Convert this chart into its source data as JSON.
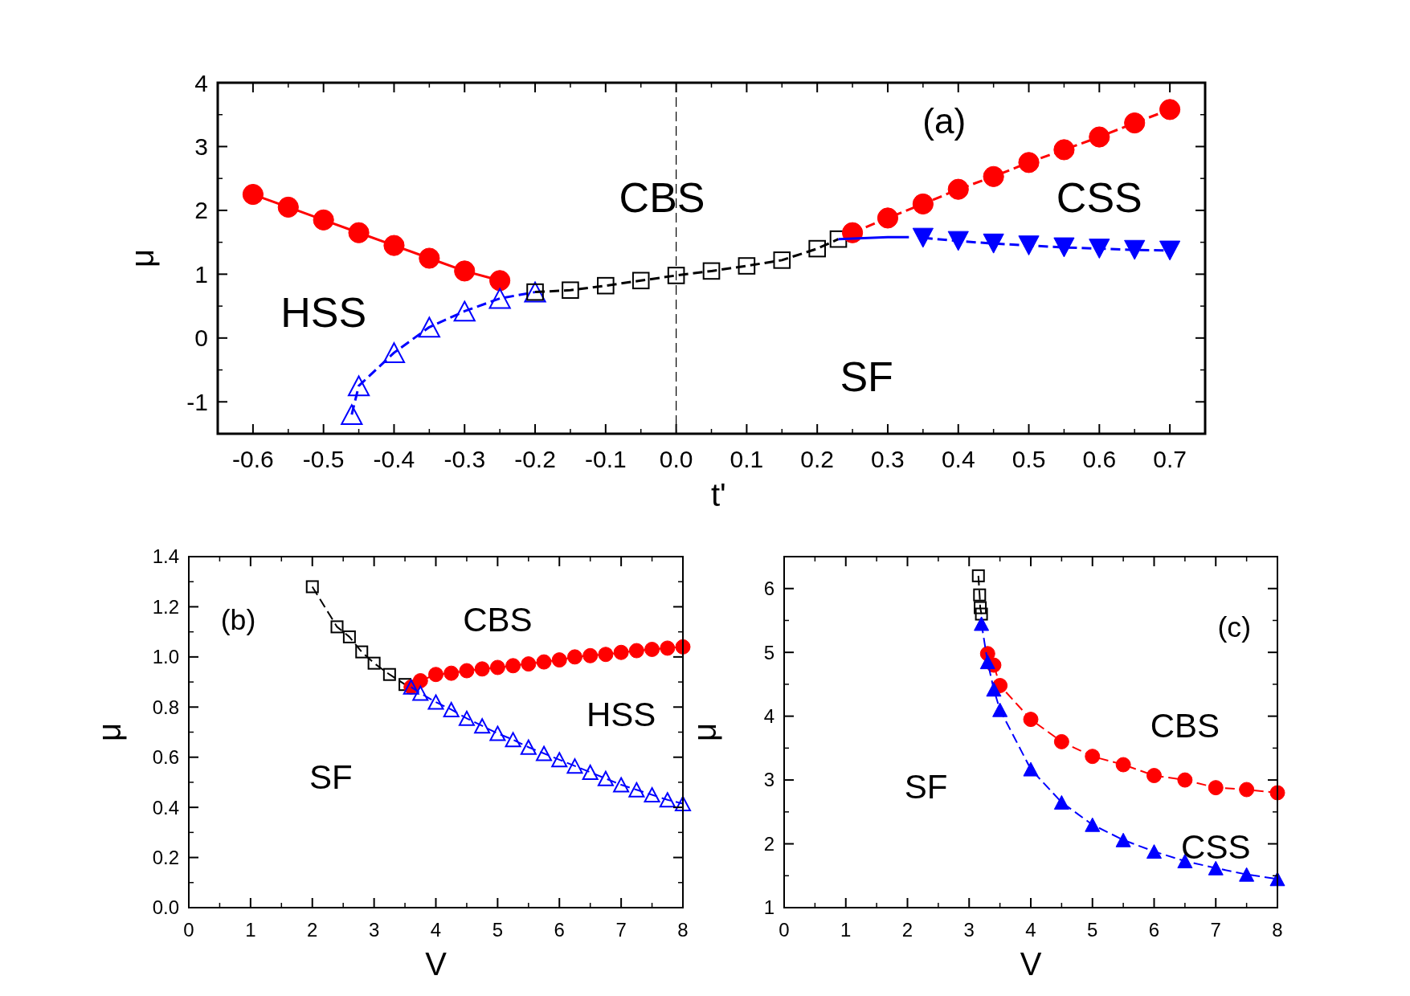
{
  "chart_data": [
    {
      "type": "line",
      "xlabel": "t'",
      "ylabel": "μ",
      "xlim": [
        -0.65,
        0.75
      ],
      "ylim": [
        -1.5,
        4
      ],
      "xticks": [
        -0.6,
        -0.5,
        -0.4,
        -0.3,
        -0.2,
        -0.1,
        {
          "value": 0,
          "label": "0.0"
        },
        0.1,
        0.2,
        0.3,
        0.4,
        0.5,
        0.6,
        0.7
      ],
      "yticks": [
        -1,
        0,
        1,
        2,
        3,
        4
      ],
      "ref_lines": [
        {
          "axis": "x",
          "value": 0,
          "label": null,
          "color": "#000000",
          "line_style": "dashed"
        }
      ],
      "annotations": [
        "(a)",
        "CBS",
        "CSS",
        "HSS",
        "SF"
      ],
      "series": [
        {
          "color": "#ff0000",
          "marker": "circle",
          "line_style": "solid",
          "x": [
            -0.6,
            -0.55,
            -0.5,
            -0.45,
            -0.4,
            -0.35,
            -0.3,
            -0.25
          ],
          "values": [
            2.25,
            2.05,
            1.85,
            1.65,
            1.45,
            1.25,
            1.05,
            0.9
          ]
        },
        {
          "color": "#0000ff",
          "marker": "triangle",
          "line_style": "dashed",
          "x": [
            -0.46,
            -0.45,
            -0.4,
            -0.35,
            -0.3,
            -0.25,
            -0.2
          ],
          "values": [
            -1.2,
            -0.75,
            -0.23,
            0.17,
            0.42,
            0.62,
            0.72
          ]
        },
        {
          "color": "#000000",
          "marker": "square",
          "line_style": "dashed",
          "x": [
            -0.2,
            -0.15,
            -0.1,
            -0.05,
            0,
            0.05,
            0.1,
            0.15,
            0.2,
            0.23
          ],
          "values": [
            0.72,
            0.75,
            0.82,
            0.9,
            0.98,
            1.05,
            1.13,
            1.22,
            1.4,
            1.55
          ]
        },
        {
          "color": "#ff0000",
          "marker": "circle",
          "line_style": "dashed",
          "x": [
            0.25,
            0.3,
            0.35,
            0.4,
            0.45,
            0.5,
            0.55,
            0.6,
            0.65,
            0.7
          ],
          "values": [
            1.65,
            1.88,
            2.1,
            2.33,
            2.53,
            2.75,
            2.95,
            3.15,
            3.37,
            3.58
          ]
        },
        {
          "color": "#0000ff",
          "marker": "none",
          "line_style": "solid",
          "x": [
            0.23,
            0.3,
            0.33
          ],
          "values": [
            1.55,
            1.58,
            1.58
          ]
        },
        {
          "color": "#0000ff",
          "marker": "triangle",
          "line_style": "dashed",
          "x": [
            0.35,
            0.4,
            0.45,
            0.5,
            0.55,
            0.6,
            0.65,
            0.7
          ],
          "values": [
            1.57,
            1.52,
            1.48,
            1.45,
            1.42,
            1.4,
            1.38,
            1.37
          ]
        }
      ]
    },
    {
      "type": "line",
      "xlabel": "V",
      "ylabel": "μ",
      "xlim": [
        0,
        8
      ],
      "ylim": [
        0,
        1.4
      ],
      "xticks": [
        0,
        1,
        2,
        3,
        4,
        5,
        6,
        7,
        8
      ],
      "yticks": [
        {
          "value": 0,
          "label": "0.0"
        },
        0.2,
        0.4,
        0.6,
        0.8,
        {
          "value": 1,
          "label": "1.0"
        },
        1.2,
        1.4
      ],
      "annotations": [
        "(b)",
        "CBS",
        "HSS",
        "SF"
      ],
      "series": [
        {
          "color": "#000000",
          "marker": "square",
          "line_style": "dashed",
          "x": [
            2,
            2.4,
            2.6,
            2.8,
            3,
            3.25,
            3.5
          ],
          "values": [
            1.28,
            1.12,
            1.08,
            1.02,
            0.975,
            0.93,
            0.89
          ]
        },
        {
          "color": "#ff0000",
          "marker": "circle",
          "line_style": "solid",
          "x": [
            3.6,
            3.75,
            4,
            4.25,
            4.5,
            4.75,
            5,
            5.25,
            5.5,
            5.75,
            6,
            6.25,
            6.5,
            6.75,
            7,
            7.25,
            7.5,
            7.75,
            8
          ],
          "values": [
            0.88,
            0.905,
            0.93,
            0.935,
            0.945,
            0.952,
            0.958,
            0.965,
            0.972,
            0.98,
            0.988,
            1.0,
            1.005,
            1.01,
            1.018,
            1.025,
            1.03,
            1.035,
            1.04
          ]
        },
        {
          "color": "#0000ff",
          "marker": "triangle",
          "line_style": "dashed",
          "x": [
            3.6,
            3.75,
            4,
            4.25,
            4.5,
            4.75,
            5,
            5.25,
            5.5,
            5.75,
            6,
            6.25,
            6.5,
            6.75,
            7,
            7.25,
            7.5,
            7.75,
            8
          ],
          "values": [
            0.88,
            0.855,
            0.82,
            0.79,
            0.755,
            0.725,
            0.695,
            0.67,
            0.64,
            0.615,
            0.59,
            0.565,
            0.54,
            0.515,
            0.49,
            0.47,
            0.45,
            0.43,
            0.415
          ]
        }
      ]
    },
    {
      "type": "line",
      "xlabel": "V",
      "ylabel": "μ",
      "xlim": [
        0,
        8
      ],
      "ylim": [
        1,
        6.5
      ],
      "xticks": [
        0,
        1,
        2,
        3,
        4,
        5,
        6,
        7,
        8
      ],
      "yticks": [
        1,
        2,
        3,
        4,
        5,
        6
      ],
      "annotations": [
        "(c)",
        "CBS",
        "CSS",
        "SF"
      ],
      "series": [
        {
          "color": "#000000",
          "marker": "square",
          "line_style": "dashed",
          "x": [
            3.15,
            3.17,
            3.18,
            3.2
          ],
          "values": [
            6.2,
            5.9,
            5.7,
            5.6
          ]
        },
        {
          "color": "#ff0000",
          "marker": "circle",
          "line_style": "dashed",
          "x": [
            3.3,
            3.4,
            3.5,
            4,
            4.5,
            5,
            5.5,
            6,
            6.5,
            7,
            7.5,
            8
          ],
          "values": [
            4.98,
            4.8,
            4.48,
            3.95,
            3.6,
            3.37,
            3.24,
            3.07,
            3.0,
            2.88,
            2.85,
            2.8
          ]
        },
        {
          "color": "#0000ff",
          "marker": "triangle",
          "line_style": "dashed",
          "x": [
            3.2,
            3.3,
            3.4,
            3.5,
            4,
            4.5,
            5,
            5.5,
            6,
            6.5,
            7,
            7.5,
            8
          ],
          "values": [
            5.45,
            4.85,
            4.42,
            4.1,
            3.17,
            2.65,
            2.3,
            2.06,
            1.88,
            1.73,
            1.62,
            1.52,
            1.45
          ]
        }
      ]
    }
  ]
}
